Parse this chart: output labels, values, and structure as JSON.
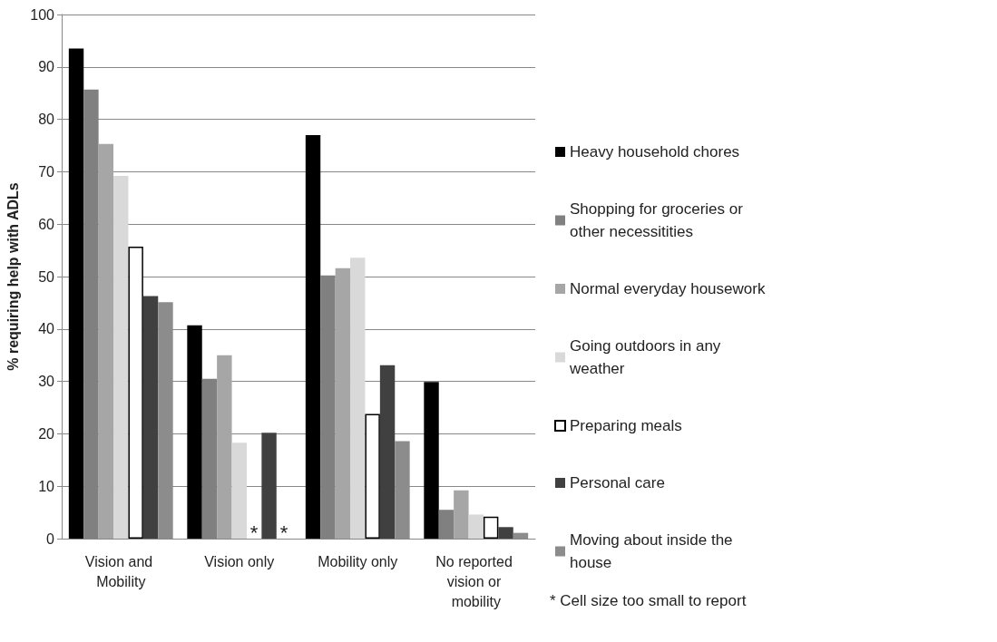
{
  "chart_data": {
    "type": "bar",
    "ylabel": "% requiring help with ADLs",
    "categories": [
      "Vision and Mobility",
      "Vision only",
      "Mobility only",
      "No reported vision or mobility"
    ],
    "series": [
      {
        "name": "Heavy household chores",
        "color": "#000000",
        "values": [
          93.5,
          40.7,
          77,
          29.9
        ]
      },
      {
        "name": "Shopping for groceries or other necessitities",
        "color": "#808080",
        "values": [
          85.7,
          30.5,
          50.2,
          5.5
        ]
      },
      {
        "name": "Normal everyday housework",
        "color": "#a6a6a6",
        "values": [
          75.3,
          35,
          51.6,
          9.2
        ]
      },
      {
        "name": "Going outdoors in any weather",
        "color": "#d9d9d9",
        "values": [
          69.2,
          18.3,
          53.6,
          4.6
        ]
      },
      {
        "name": "Preparing meals",
        "color": "#ffffff",
        "values": [
          55.7,
          null,
          23.8,
          4.2
        ]
      },
      {
        "name": "Personal care",
        "color": "#404040",
        "values": [
          46.3,
          20.2,
          33.1,
          2.2
        ]
      },
      {
        "name": "Moving about inside the house",
        "color": "#8c8c8c",
        "values": [
          45.1,
          null,
          18.6,
          1.1
        ]
      }
    ],
    "ylim": [
      0,
      100
    ],
    "yticks": [
      0,
      10,
      20,
      30,
      40,
      50,
      60,
      70,
      80,
      90,
      100
    ],
    "grid": "y",
    "legend": "right",
    "annotations": [
      {
        "text": "*",
        "x": "Vision only",
        "y": 0
      },
      {
        "text": "*",
        "x": "Vision only",
        "y": 0
      },
      "* Cell size too small to report"
    ]
  }
}
